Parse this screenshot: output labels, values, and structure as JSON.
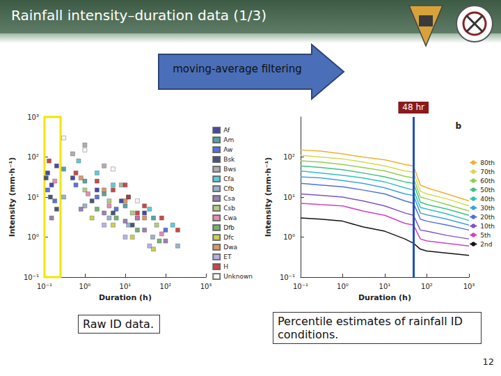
{
  "slide": {
    "title": "Rainfall intensity–duration data (1/3)",
    "arrow_text": "moving-average filtering",
    "captions": [
      "Raw ID data.",
      "Percentile estimates of rainfall ID conditions."
    ],
    "page": 12
  },
  "chart_data": [
    {
      "type": "scatter",
      "x_label": "Duration (h)",
      "y_label": "Intensity (mm·h⁻¹)",
      "log": true,
      "grid": false,
      "legend": "right",
      "marker": "square",
      "xlim": [
        0.1,
        1000
      ],
      "ylim": [
        0.1,
        1000
      ],
      "xticks": [
        {
          "value": 0.1,
          "label": "10⁻¹"
        },
        {
          "value": 1,
          "label": "10⁰"
        },
        {
          "value": 10,
          "label": "10¹"
        },
        {
          "value": 100,
          "label": "10²"
        },
        {
          "value": 1000,
          "label": "10³"
        }
      ],
      "yticks": [
        {
          "value": 0.1,
          "label": "10⁻¹"
        },
        {
          "value": 1,
          "label": "10⁰"
        },
        {
          "value": 10,
          "label": "10¹"
        },
        {
          "value": 100,
          "label": "10²"
        },
        {
          "value": 1000,
          "label": "10³"
        }
      ],
      "annotations": [
        {
          "type": "box",
          "x": [
            0.1,
            0.25
          ],
          "color": "#f2e600"
        }
      ],
      "series": [
        {
          "name": "Af",
          "color": "#1a1a8c",
          "x": [
            0.12,
            0.15,
            0.5,
            2,
            8,
            30,
            0.2
          ],
          "values": [
            40,
            20,
            30,
            15,
            8,
            4,
            60
          ]
        },
        {
          "name": "Am",
          "color": "#2e8b8b",
          "x": [
            0.3,
            1,
            3,
            10,
            50
          ],
          "values": [
            50,
            25,
            12,
            6,
            3
          ]
        },
        {
          "name": "Aw",
          "color": "#3050d0",
          "x": [
            0.12,
            0.18,
            0.6,
            2,
            6,
            20,
            100
          ],
          "values": [
            15,
            8,
            20,
            10,
            5,
            3,
            1.5
          ]
        },
        {
          "name": "Bsk",
          "color": "#1c2a5a",
          "x": [
            0.11,
            0.14,
            0.2,
            1.5,
            5,
            15
          ],
          "values": [
            30,
            10,
            5,
            8,
            4,
            2
          ]
        },
        {
          "name": "Bws",
          "color": "#9a9a9a",
          "x": [
            0.5,
            1,
            3,
            8
          ],
          "values": [
            120,
            200,
            60,
            20
          ]
        },
        {
          "name": "Cfa",
          "color": "#30c0d0",
          "x": [
            0.7,
            2,
            5,
            12,
            40,
            150
          ],
          "values": [
            80,
            40,
            20,
            10,
            5,
            2
          ]
        },
        {
          "name": "Cfb",
          "color": "#7fa0c0",
          "x": [
            0.3,
            1,
            4,
            12,
            48,
            200
          ],
          "values": [
            10,
            6,
            3,
            2,
            1,
            0.6
          ]
        },
        {
          "name": "Csa",
          "color": "#8060a0",
          "x": [
            0.15,
            0.8,
            3,
            10,
            30,
            100
          ],
          "values": [
            3,
            5,
            4,
            2.5,
            1.5,
            0.8
          ]
        },
        {
          "name": "Csb",
          "color": "#a0c060",
          "x": [
            1,
            4,
            15,
            60
          ],
          "values": [
            15,
            8,
            4,
            2
          ]
        },
        {
          "name": "Cwa",
          "color": "#e070a0",
          "x": [
            0.18,
            1.2,
            4,
            20,
            80
          ],
          "values": [
            25,
            12,
            6,
            3,
            1.2
          ]
        },
        {
          "name": "Dfb",
          "color": "#50a050",
          "x": [
            2,
            6,
            20,
            70
          ],
          "values": [
            5,
            3,
            1.5,
            0.8
          ]
        },
        {
          "name": "Dfc",
          "color": "#c0c030",
          "x": [
            1.5,
            5,
            15,
            50
          ],
          "values": [
            3,
            2,
            1,
            0.5
          ]
        },
        {
          "name": "Dwa",
          "color": "#d08040",
          "x": [
            0.8,
            3,
            10,
            30
          ],
          "values": [
            30,
            15,
            8,
            3
          ]
        },
        {
          "name": "ET",
          "color": "#a0a0e0",
          "x": [
            3,
            10,
            40
          ],
          "values": [
            2,
            1,
            0.6
          ]
        },
        {
          "name": "H",
          "color": "#c01818",
          "x": [
            0.13,
            0.6,
            2,
            5,
            12,
            30,
            80,
            200,
            10,
            20
          ],
          "values": [
            80,
            40,
            25,
            15,
            10,
            6,
            3,
            1.5,
            20,
            4
          ]
        },
        {
          "name": "Unknown",
          "color": "#f4f4f4",
          "x": [
            0.3,
            1,
            5,
            20
          ],
          "values": [
            300,
            150,
            50,
            8
          ]
        }
      ]
    },
    {
      "type": "line",
      "x_label": "Duration (h)",
      "y_label": "Intensity (mm·h⁻¹)",
      "panel_label": "b",
      "log": true,
      "grid": false,
      "legend": "right",
      "xlim": [
        0.1,
        1000
      ],
      "ylim": [
        0.1,
        1000
      ],
      "xticks": [
        {
          "value": 0.1,
          "label": "10⁻¹"
        },
        {
          "value": 1,
          "label": "10⁰"
        },
        {
          "value": 10,
          "label": "10¹"
        },
        {
          "value": 100,
          "label": "10²"
        },
        {
          "value": 1000,
          "label": "10³"
        }
      ],
      "yticks": [
        {
          "value": 0.1,
          "label": "10⁻¹"
        },
        {
          "value": 1,
          "label": "10⁰"
        },
        {
          "value": 10,
          "label": "10¹"
        },
        {
          "value": 100,
          "label": "10²"
        }
      ],
      "annotations": [
        {
          "type": "vline",
          "x": 48,
          "label": "48 hr",
          "color": "#1f4fbf"
        }
      ],
      "x": [
        0.1,
        0.3,
        1,
        3,
        10,
        30,
        48,
        70,
        100,
        300,
        1000
      ],
      "series": [
        {
          "name": "80th",
          "color": "#f0b030",
          "values": [
            150,
            140,
            120,
            100,
            85,
            65,
            60,
            20,
            17,
            12,
            8
          ]
        },
        {
          "name": "70th",
          "color": "#d8d850",
          "values": [
            110,
            100,
            90,
            75,
            60,
            45,
            42,
            14,
            12,
            9,
            6
          ]
        },
        {
          "name": "60th",
          "color": "#90d050",
          "values": [
            80,
            75,
            65,
            55,
            45,
            33,
            30,
            10,
            9,
            6.5,
            4.5
          ]
        },
        {
          "name": "50th",
          "color": "#40c080",
          "values": [
            60,
            55,
            48,
            40,
            32,
            24,
            22,
            7.5,
            6.5,
            5,
            3.5
          ]
        },
        {
          "name": "40th",
          "color": "#30c0c0",
          "values": [
            45,
            40,
            35,
            30,
            24,
            17,
            15,
            5.5,
            5,
            3.8,
            2.6
          ]
        },
        {
          "name": "30th",
          "color": "#40a0e0",
          "values": [
            32,
            30,
            26,
            22,
            17,
            12,
            11,
            4,
            3.6,
            2.8,
            2
          ]
        },
        {
          "name": "20th",
          "color": "#5070e0",
          "values": [
            22,
            20,
            18,
            15,
            12,
            8,
            7,
            2.8,
            2.5,
            2,
            1.5
          ]
        },
        {
          "name": "10th",
          "color": "#8050d0",
          "values": [
            12,
            11,
            10,
            8,
            6,
            4,
            3.5,
            1.5,
            1.4,
            1.1,
            0.9
          ]
        },
        {
          "name": "5th",
          "color": "#d040c0",
          "values": [
            7,
            6.5,
            6,
            4.5,
            3.5,
            2.2,
            2,
            0.9,
            0.8,
            0.7,
            0.6
          ]
        },
        {
          "name": "2nd",
          "color": "#111111",
          "values": [
            3,
            2.8,
            2.5,
            1.8,
            1.4,
            0.9,
            0.7,
            0.5,
            0.45,
            0.4,
            0.35
          ]
        }
      ]
    }
  ]
}
